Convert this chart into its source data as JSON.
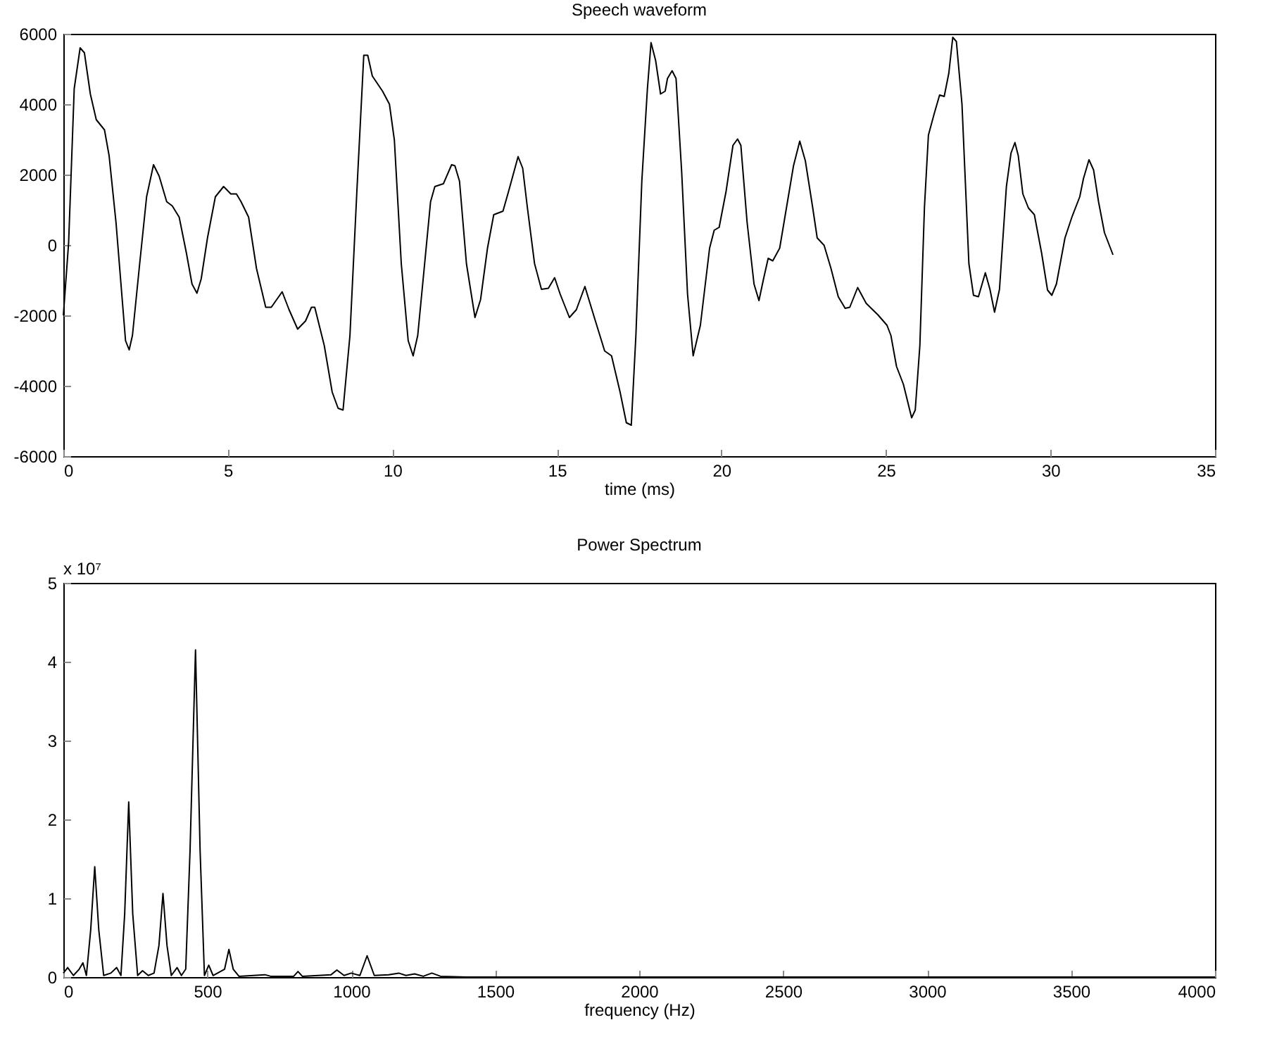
{
  "chart_data": [
    {
      "type": "line",
      "title": "Speech waveform",
      "xlabel": "time (ms)",
      "color": "#000000",
      "x": [
        0,
        0.16,
        0.33,
        0.51,
        0.64,
        0.82,
        1.0,
        1.25,
        1.39,
        1.6,
        1.89,
        2.0,
        2.1,
        2.32,
        2.53,
        2.74,
        2.91,
        3.14,
        3.31,
        3.52,
        3.74,
        3.91,
        4.06,
        4.19,
        4.38,
        4.62,
        4.87,
        5.09,
        5.26,
        5.4,
        5.63,
        5.87,
        6.15,
        6.32,
        6.65,
        6.86,
        7.12,
        7.36,
        7.54,
        7.64,
        7.93,
        8.17,
        8.35,
        8.5,
        8.71,
        8.92,
        9.13,
        9.25,
        9.39,
        9.7,
        9.91,
        10.06,
        10.27,
        10.48,
        10.63,
        10.77,
        10.98,
        11.16,
        11.29,
        11.55,
        11.8,
        11.9,
        12.04,
        12.25,
        12.51,
        12.68,
        12.89,
        13.08,
        13.36,
        13.53,
        13.82,
        13.96,
        14.1,
        14.32,
        14.53,
        14.74,
        14.93,
        15.1,
        15.38,
        15.59,
        15.85,
        16.16,
        16.45,
        16.66,
        16.92,
        17.11,
        17.26,
        17.4,
        17.58,
        17.75,
        17.86,
        18.0,
        18.15,
        18.29,
        18.36,
        18.5,
        18.62,
        18.79,
        18.97,
        19.14,
        19.36,
        19.64,
        19.78,
        19.93,
        20.14,
        20.35,
        20.49,
        20.59,
        20.78,
        20.99,
        21.14,
        21.28,
        21.42,
        21.56,
        21.77,
        21.98,
        22.19,
        22.38,
        22.55,
        22.77,
        22.91,
        23.12,
        23.33,
        23.55,
        23.76,
        23.9,
        24.14,
        24.4,
        24.76,
        25.03,
        25.15,
        25.32,
        25.53,
        25.78,
        25.89,
        26.03,
        26.17,
        26.29,
        26.46,
        26.63,
        26.77,
        26.91,
        27.03,
        27.14,
        27.31,
        27.52,
        27.66,
        27.81,
        28.02,
        28.16,
        28.3,
        28.45,
        28.66,
        28.8,
        28.92,
        29.02,
        29.16,
        29.33,
        29.51,
        29.73,
        29.91,
        30.04,
        30.18,
        30.44,
        30.65,
        30.89,
        31.0,
        31.17,
        31.31,
        31.46,
        31.64,
        31.9
      ],
      "values": [
        -2000,
        60,
        4440,
        5600,
        5460,
        4290,
        3560,
        3270,
        2540,
        640,
        -2720,
        -2980,
        -2570,
        -530,
        1370,
        2280,
        1960,
        1230,
        1110,
        790,
        -230,
        -1110,
        -1370,
        -960,
        200,
        1370,
        1660,
        1450,
        1450,
        1230,
        790,
        -670,
        -1770,
        -1770,
        -1330,
        -1840,
        -2390,
        -2160,
        -1770,
        -1770,
        -2860,
        -4180,
        -4640,
        -4690,
        -2570,
        1520,
        5390,
        5390,
        4800,
        4370,
        4000,
        2980,
        -530,
        -2720,
        -3150,
        -2570,
        -530,
        1230,
        1660,
        1740,
        2280,
        2250,
        1810,
        -530,
        -2060,
        -1550,
        -90,
        860,
        960,
        1520,
        2510,
        2180,
        1080,
        -530,
        -1260,
        -1230,
        -930,
        -1400,
        -2060,
        -1840,
        -1180,
        -2130,
        -3010,
        -3150,
        -4180,
        -5050,
        -5120,
        -2570,
        1810,
        4440,
        5750,
        5240,
        4290,
        4370,
        4730,
        4950,
        4730,
        2100,
        -1400,
        -3150,
        -2280,
        -90,
        420,
        500,
        1520,
        2830,
        3010,
        2830,
        640,
        -1110,
        -1580,
        -960,
        -380,
        -450,
        -90,
        1080,
        2250,
        2950,
        2390,
        1080,
        200,
        -10,
        -670,
        -1470,
        -1800,
        -1770,
        -1210,
        -1660,
        -1990,
        -2280,
        -2570,
        -3450,
        -3960,
        -4910,
        -4690,
        -2860,
        1080,
        3120,
        3710,
        4260,
        4220,
        4880,
        5900,
        5780,
        4000,
        -530,
        -1430,
        -1470,
        -790,
        -1260,
        -1910,
        -1260,
        1660,
        2610,
        2910,
        2540,
        1450,
        1050,
        860,
        -230,
        -1280,
        -1430,
        -1110,
        200,
        790,
        1370,
        1880,
        2420,
        2130,
        1230,
        350,
        -280
      ],
      "xlim": [
        0,
        35
      ],
      "xticks": [
        0,
        5,
        10,
        15,
        20,
        25,
        30,
        35
      ],
      "ylim": [
        -6000,
        6000
      ],
      "yticks": [
        -6000,
        -4000,
        -2000,
        0,
        2000,
        4000,
        6000
      ]
    },
    {
      "type": "line",
      "title": "Power Spectrum",
      "xlabel": "frequency (Hz)",
      "color": "#000000",
      "annotations": [
        "x 10⁷"
      ],
      "x": [
        0,
        15,
        35,
        55,
        68,
        80,
        95,
        109,
        123,
        140,
        165,
        185,
        200,
        213,
        227,
        241,
        258,
        275,
        295,
        315,
        332,
        346,
        360,
        375,
        395,
        410,
        425,
        440,
        459,
        475,
        490,
        505,
        520,
        560,
        575,
        590,
        610,
        700,
        720,
        800,
        815,
        830,
        930,
        950,
        975,
        1000,
        1030,
        1055,
        1080,
        1130,
        1165,
        1190,
        1220,
        1250,
        1280,
        1310,
        1400,
        4000
      ],
      "values": [
        0.05,
        0.12,
        0.02,
        0.1,
        0.18,
        0.02,
        0.6,
        1.4,
        0.6,
        0.02,
        0.05,
        0.12,
        0.02,
        0.8,
        2.22,
        0.8,
        0.02,
        0.08,
        0.02,
        0.05,
        0.4,
        1.06,
        0.4,
        0.02,
        0.12,
        0.02,
        0.1,
        1.6,
        4.15,
        1.6,
        0.02,
        0.15,
        0.02,
        0.1,
        0.35,
        0.1,
        0.01,
        0.03,
        0.01,
        0.01,
        0.07,
        0.01,
        0.03,
        0.09,
        0.02,
        0.05,
        0.02,
        0.27,
        0.02,
        0.03,
        0.05,
        0.02,
        0.04,
        0.01,
        0.05,
        0.01,
        0,
        0
      ],
      "xlim": [
        0,
        4000
      ],
      "xticks": [
        0,
        500,
        1000,
        1500,
        2000,
        2500,
        3000,
        3500,
        4000
      ],
      "ylim": [
        0,
        5
      ],
      "yticks": [
        0,
        1,
        2,
        3,
        4,
        5
      ]
    }
  ]
}
